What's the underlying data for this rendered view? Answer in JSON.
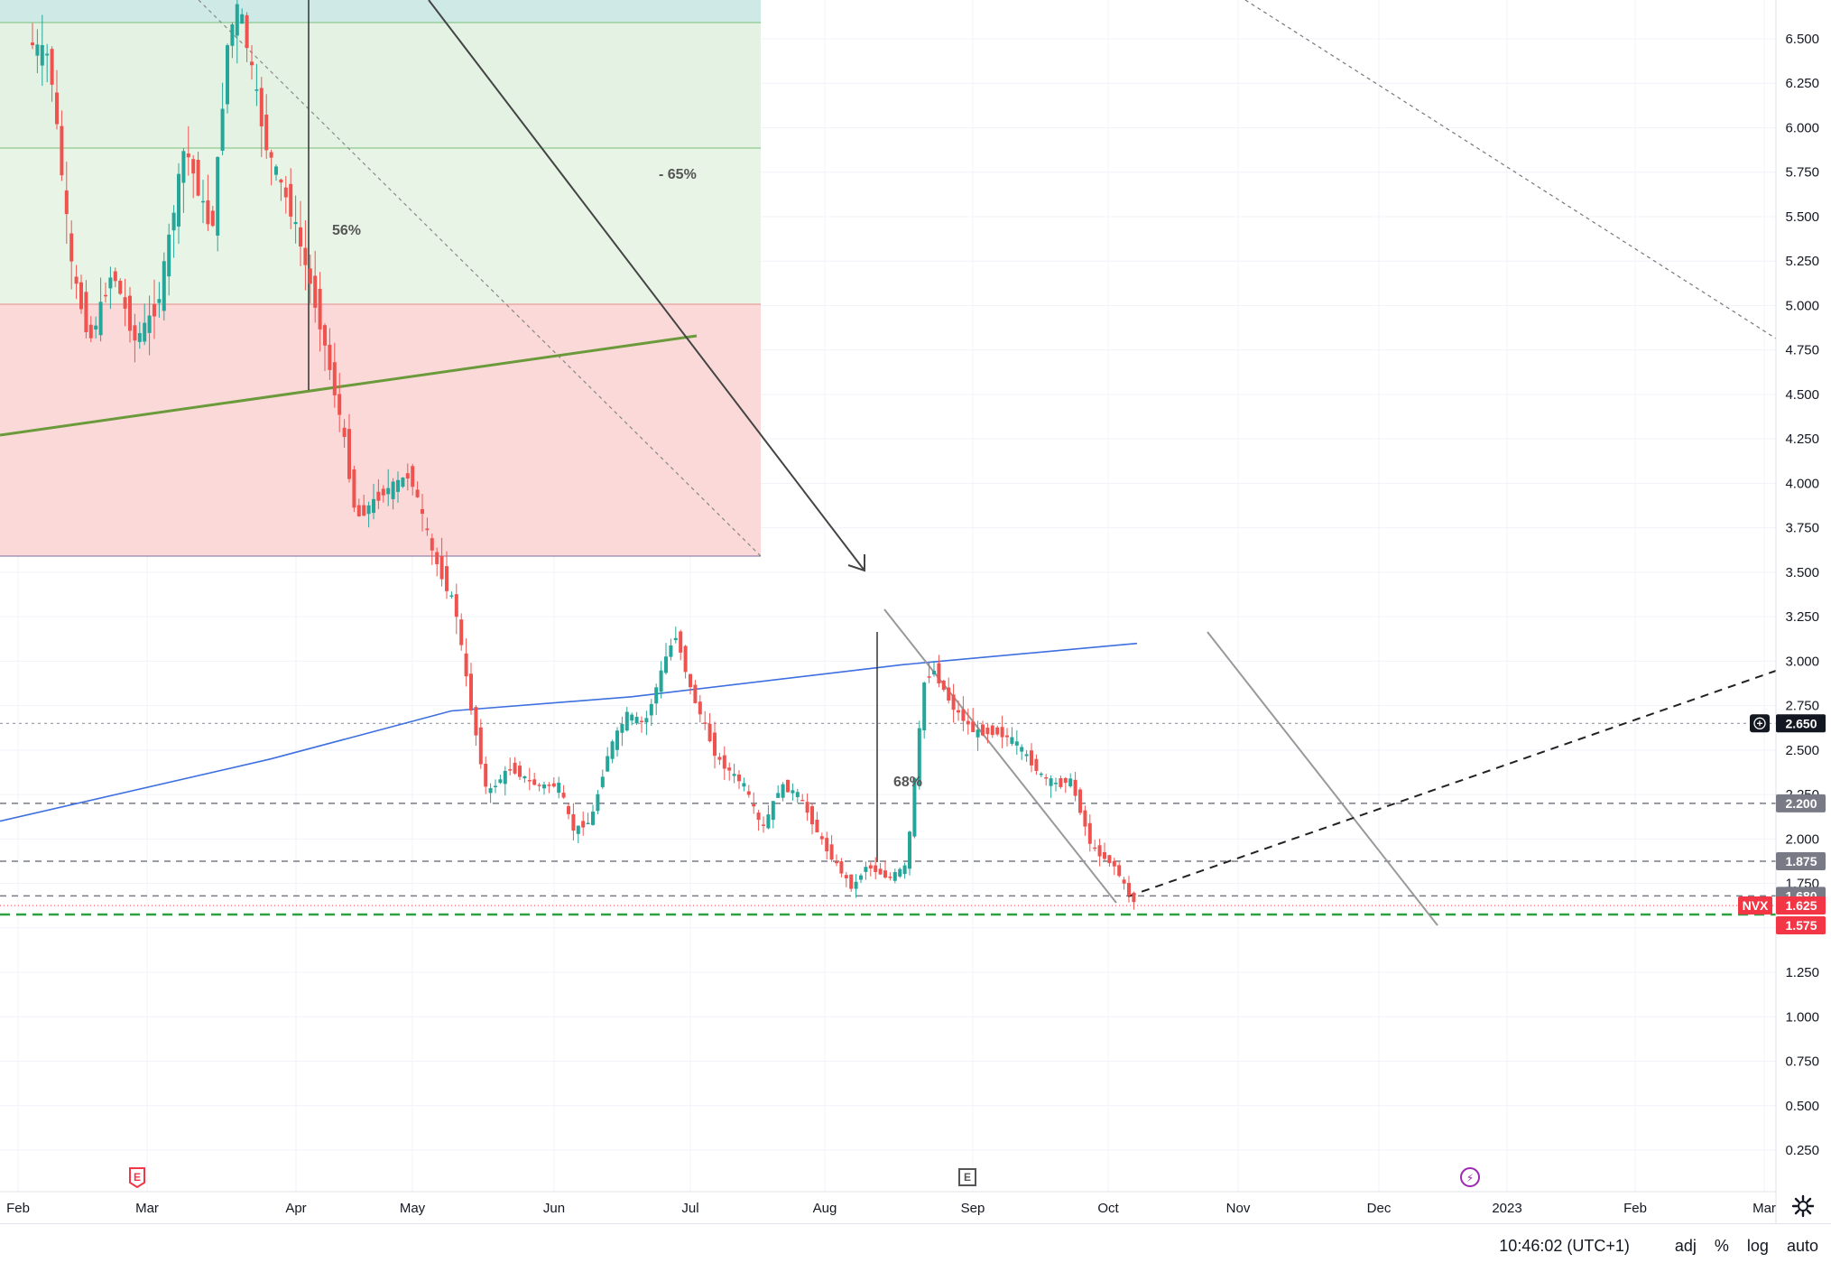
{
  "chart_data": {
    "type": "candlestick",
    "symbol": "NVX",
    "last_price": "1.625",
    "x_ticks": [
      "Feb",
      "Mar",
      "Apr",
      "May",
      "Jun",
      "Jul",
      "Aug",
      "Sep",
      "Oct",
      "Nov",
      "Dec",
      "2023",
      "Feb",
      "Mar"
    ],
    "y_ticks": [
      "6.500",
      "6.250",
      "6.000",
      "5.750",
      "5.500",
      "5.250",
      "5.000",
      "4.750",
      "4.500",
      "4.250",
      "4.000",
      "3.750",
      "3.500",
      "3.250",
      "3.000",
      "2.750",
      "2.500",
      "2.250",
      "2.000",
      "1.750",
      "1.500",
      "1.250",
      "1.000",
      "0.750",
      "0.500",
      "0.250"
    ],
    "ylim": [
      0.1,
      6.72
    ],
    "price_tags": [
      {
        "label": "2.650",
        "value": 2.65,
        "bg": "#131722",
        "fg": "#ffffff",
        "crosshair": true
      },
      {
        "label": "2.200",
        "value": 2.2,
        "bg": "#787b86",
        "fg": "#ffffff"
      },
      {
        "label": "1.875",
        "value": 1.875,
        "bg": "#787b86",
        "fg": "#ffffff"
      },
      {
        "label": "1.680",
        "value": 1.68,
        "bg": "#787b86",
        "fg": "#ffffff"
      },
      {
        "label": "1.625",
        "value": 1.625,
        "bg": "#f23645",
        "fg": "#ffffff"
      },
      {
        "label": "1.575",
        "value": 1.575,
        "bg": "#f23645",
        "fg": "#ffffff"
      }
    ],
    "annotations": [
      "56%",
      "- 65%",
      "68%"
    ],
    "horizontal_levels": [
      2.65,
      2.2,
      1.875,
      1.68
    ],
    "support_level": 1.575,
    "candle_path": [
      [
        1,
        6.6
      ],
      [
        60,
        6.4
      ],
      [
        85,
        5.2
      ],
      [
        105,
        4.8
      ],
      [
        130,
        5.2
      ],
      [
        155,
        4.8
      ],
      [
        180,
        5.0
      ],
      [
        210,
        5.9
      ],
      [
        240,
        5.4
      ],
      [
        258,
        6.5
      ],
      [
        270,
        6.7
      ],
      [
        300,
        5.9
      ],
      [
        330,
        5.5
      ],
      [
        360,
        4.9
      ],
      [
        385,
        4.3
      ],
      [
        400,
        3.8
      ],
      [
        430,
        3.95
      ],
      [
        460,
        4.05
      ],
      [
        485,
        3.6
      ],
      [
        510,
        3.3
      ],
      [
        525,
        2.8
      ],
      [
        545,
        2.25
      ],
      [
        570,
        2.4
      ],
      [
        600,
        2.3
      ],
      [
        625,
        2.3
      ],
      [
        640,
        2.05
      ],
      [
        660,
        2.1
      ],
      [
        680,
        2.5
      ],
      [
        700,
        2.7
      ],
      [
        720,
        2.65
      ],
      [
        745,
        3.05
      ],
      [
        755,
        3.15
      ],
      [
        770,
        2.85
      ],
      [
        800,
        2.45
      ],
      [
        830,
        2.3
      ],
      [
        850,
        2.05
      ],
      [
        870,
        2.3
      ],
      [
        890,
        2.25
      ],
      [
        920,
        1.95
      ],
      [
        950,
        1.72
      ],
      [
        965,
        1.85
      ],
      [
        990,
        1.78
      ],
      [
        1010,
        1.85
      ],
      [
        1020,
        2.4
      ],
      [
        1030,
        2.9
      ],
      [
        1040,
        2.95
      ],
      [
        1060,
        2.75
      ],
      [
        1085,
        2.6
      ],
      [
        1110,
        2.6
      ],
      [
        1130,
        2.55
      ],
      [
        1160,
        2.35
      ],
      [
        1180,
        2.3
      ],
      [
        1190,
        2.35
      ],
      [
        1200,
        2.2
      ],
      [
        1215,
        1.95
      ],
      [
        1240,
        1.85
      ],
      [
        1260,
        1.65
      ]
    ],
    "moving_average": [
      [
        0,
        2.1
      ],
      [
        300,
        2.45
      ],
      [
        500,
        2.72
      ],
      [
        700,
        2.8
      ],
      [
        1000,
        2.98
      ],
      [
        1260,
        3.1
      ]
    ]
  },
  "markers": {
    "m1": "E",
    "m2": "E",
    "m3": "⚡"
  },
  "bottom_bar": {
    "time": "10:46:02 (UTC+1)",
    "adj": "adj",
    "percent": "%",
    "log": "log",
    "auto": "auto"
  },
  "icons": {
    "settings": "gear-icon",
    "crosshair": "crosshair-icon"
  }
}
